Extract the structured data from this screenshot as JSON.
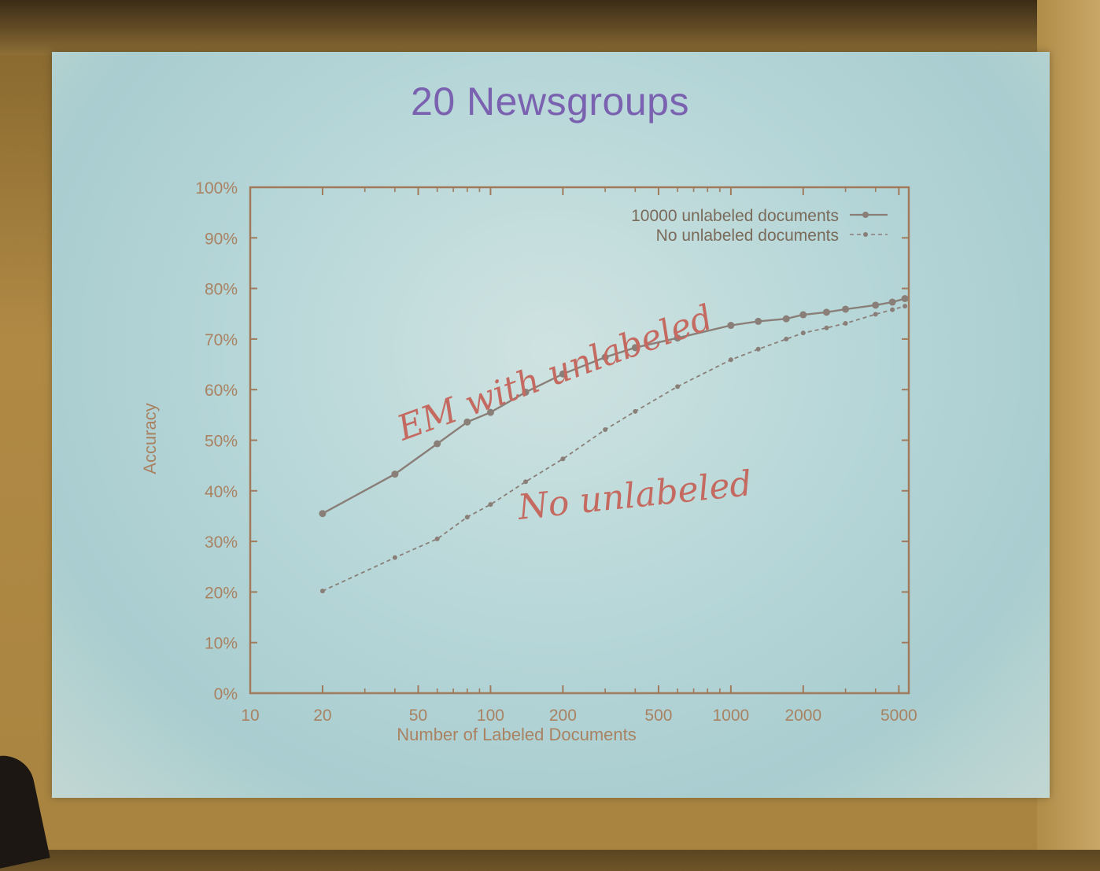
{
  "slide": {
    "title": "20 Newsgroups"
  },
  "colors": {
    "axis": "#a07a5a",
    "series_line": "#8a7f78",
    "annotation": "#c46a60",
    "title": "#7a62b0"
  },
  "chart_data": {
    "type": "line",
    "xlabel": "Number of Labeled Documents",
    "ylabel": "Accuracy",
    "xscale": "log",
    "xlim": [
      10,
      5500
    ],
    "ylim": [
      0,
      100
    ],
    "x_ticks": [
      10,
      20,
      50,
      100,
      200,
      500,
      1000,
      2000,
      5000
    ],
    "y_ticks": [
      0,
      10,
      20,
      30,
      40,
      50,
      60,
      70,
      80,
      90,
      100
    ],
    "x_tick_labels": [
      "10",
      "20",
      "50",
      "100",
      "200",
      "500",
      "1000",
      "2000",
      "5000"
    ],
    "y_tick_labels": [
      "0%",
      "10%",
      "20%",
      "30%",
      "40%",
      "50%",
      "60%",
      "70%",
      "80%",
      "90%",
      "100%"
    ],
    "legend_position": "top-right",
    "grid": false,
    "series": [
      {
        "name": "10000 unlabeled documents",
        "style": "solid",
        "x": [
          20,
          40,
          60,
          80,
          100,
          140,
          200,
          300,
          400,
          600,
          1000,
          1300,
          1700,
          2000,
          2500,
          3000,
          4000,
          4700,
          5300
        ],
        "y": [
          35.5,
          43.3,
          49.3,
          53.6,
          55.5,
          59.5,
          63.1,
          66.4,
          68.3,
          70.2,
          72.7,
          73.5,
          74.0,
          74.8,
          75.3,
          75.9,
          76.7,
          77.3,
          78.0
        ]
      },
      {
        "name": "No unlabeled documents",
        "style": "dashed",
        "x": [
          20,
          40,
          60,
          80,
          100,
          140,
          200,
          300,
          400,
          600,
          1000,
          1300,
          1700,
          2000,
          2500,
          3000,
          4000,
          4700,
          5300
        ],
        "y": [
          20.2,
          26.8,
          30.5,
          34.8,
          37.3,
          41.8,
          46.3,
          52.1,
          55.7,
          60.6,
          65.9,
          68.0,
          70.0,
          71.2,
          72.2,
          73.1,
          74.9,
          75.8,
          76.5
        ]
      }
    ],
    "annotations": [
      {
        "text": "EM with unlabeled",
        "near": "upper curve"
      },
      {
        "text": "No unlabeled",
        "near": "lower curve"
      }
    ]
  }
}
